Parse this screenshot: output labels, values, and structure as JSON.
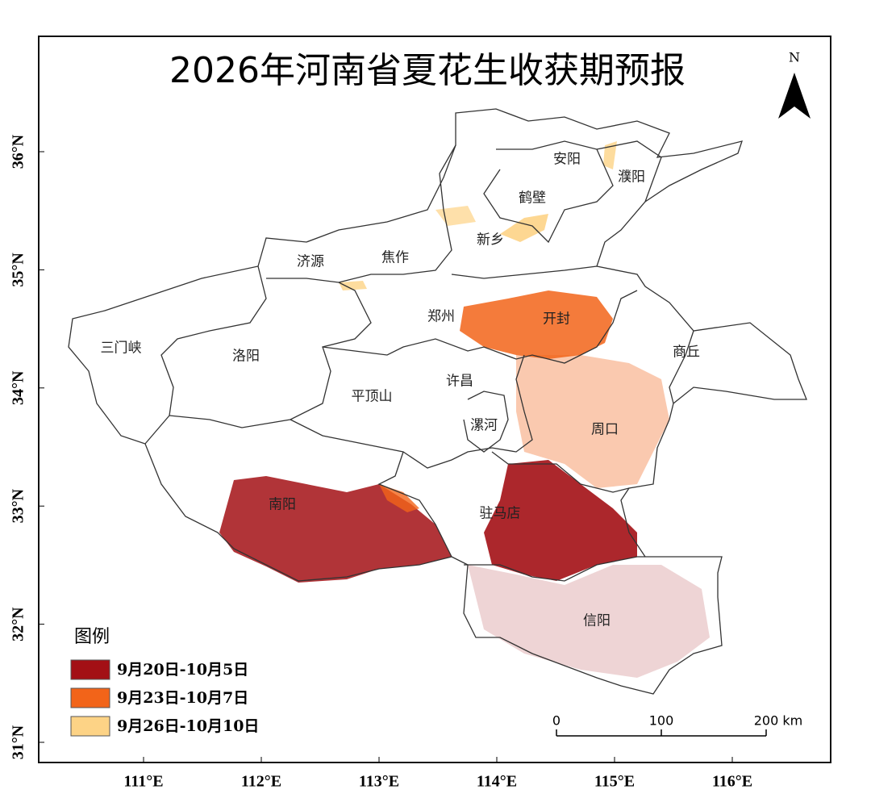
{
  "map": {
    "title": "2026年河南省夏花生收获期预报",
    "north": "N",
    "regions": [
      "安阳",
      "濮阳",
      "鹤壁",
      "新乡",
      "济源",
      "焦作",
      "郑州",
      "开封",
      "三门峡",
      "洛阳",
      "商丘",
      "许昌",
      "平顶山",
      "漯河",
      "周口",
      "南阳",
      "驻马店",
      "信阳"
    ],
    "x_axis_labels": [
      "111°E",
      "112°E",
      "113°E",
      "114°E",
      "115°E",
      "116°E"
    ],
    "y_axis_labels": [
      "36°N",
      "35°N",
      "34°N",
      "33°N",
      "32°N",
      "31°N"
    ],
    "legend": {
      "title": "图例",
      "items": [
        {
          "label": "9月20日-10月5日",
          "color": "#a31015"
        },
        {
          "label": "9月23日-10月7日",
          "color": "#f26419"
        },
        {
          "label": "9月26日-10月10日",
          "color": "#fdd386"
        }
      ]
    },
    "scale_bar": [
      "0",
      "100",
      "200 km"
    ]
  }
}
